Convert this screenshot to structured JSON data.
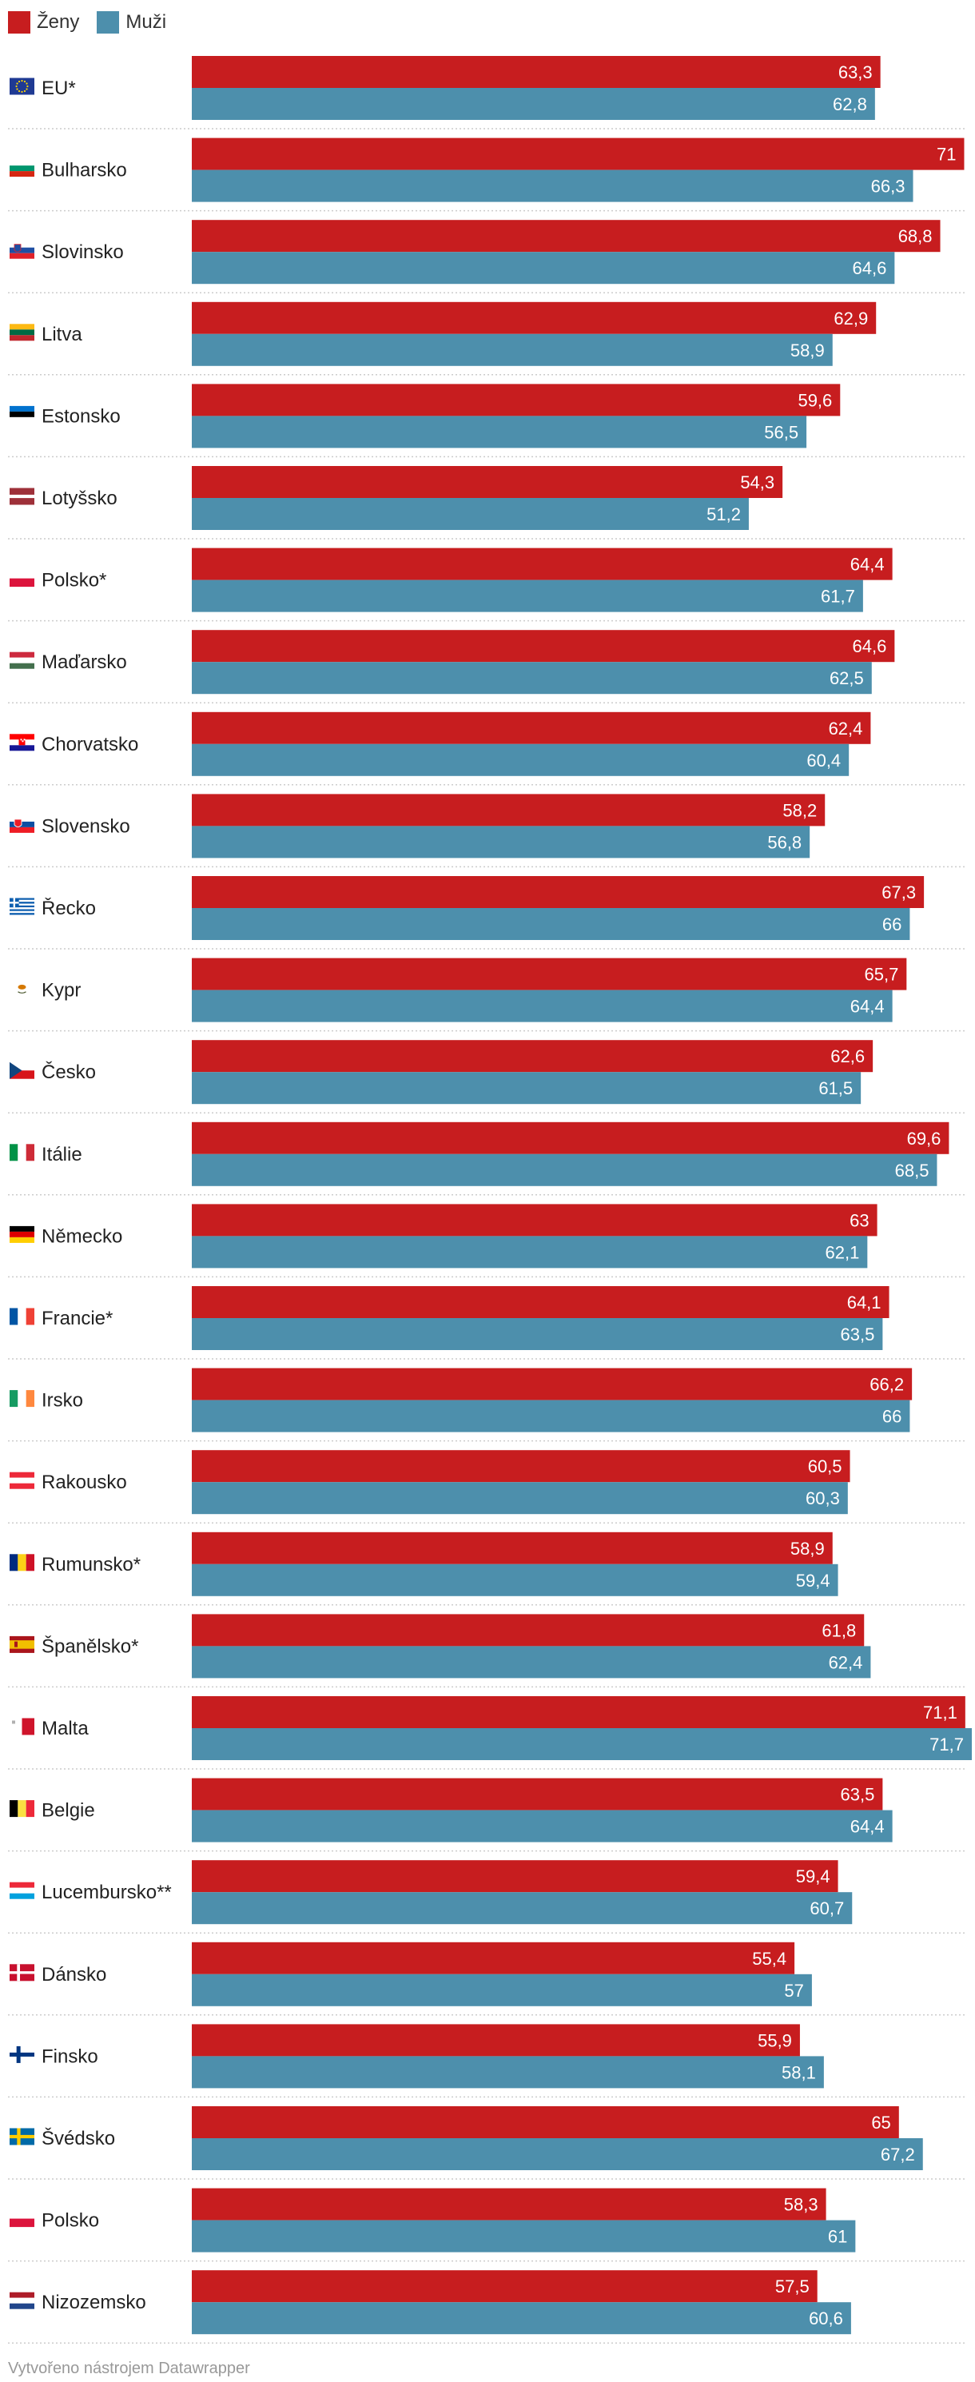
{
  "colors": {
    "women": "#c71d1f",
    "men": "#4d8fac",
    "divider": "#cccccc",
    "value_text": "#ffffff",
    "label_text": "#222222",
    "footer_text": "#999999"
  },
  "chart_data": {
    "type": "bar",
    "orientation": "horizontal",
    "legend_position": "top-left",
    "grid": false,
    "xlim": [
      0,
      71.7
    ],
    "series": [
      {
        "name": "Ženy",
        "color": "#c71d1f",
        "values": [
          63.3,
          71,
          68.8,
          62.9,
          59.6,
          54.3,
          64.4,
          64.6,
          62.4,
          58.2,
          67.3,
          65.7,
          62.6,
          69.6,
          63,
          64.1,
          66.2,
          60.5,
          58.9,
          61.8,
          71.1,
          63.5,
          59.4,
          55.4,
          55.9,
          65,
          58.3,
          57.5
        ],
        "labels": [
          "63,3",
          "71",
          "68,8",
          "62,9",
          "59,6",
          "54,3",
          "64,4",
          "64,6",
          "62,4",
          "58,2",
          "67,3",
          "65,7",
          "62,6",
          "69,6",
          "63",
          "64,1",
          "66,2",
          "60,5",
          "58,9",
          "61,8",
          "71,1",
          "63,5",
          "59,4",
          "55,4",
          "55,9",
          "65",
          "58,3",
          "57,5"
        ]
      },
      {
        "name": "Muži",
        "color": "#4d8fac",
        "values": [
          62.8,
          66.3,
          64.6,
          58.9,
          56.5,
          51.2,
          61.7,
          62.5,
          60.4,
          56.8,
          66,
          64.4,
          61.5,
          68.5,
          62.1,
          63.5,
          66,
          60.3,
          59.4,
          62.4,
          71.7,
          64.4,
          60.7,
          57,
          58.1,
          67.2,
          61,
          60.6
        ],
        "labels": [
          "62,8",
          "66,3",
          "64,6",
          "58,9",
          "56,5",
          "51,2",
          "61,7",
          "62,5",
          "60,4",
          "56,8",
          "66",
          "64,4",
          "61,5",
          "68,5",
          "62,1",
          "63,5",
          "66",
          "60,3",
          "59,4",
          "62,4",
          "71,7",
          "64,4",
          "60,7",
          "57",
          "58,1",
          "67,2",
          "61",
          "60,6"
        ]
      }
    ],
    "categories": [
      {
        "label": "EU*",
        "flag": "eu"
      },
      {
        "label": "Bulharsko",
        "flag": "bg"
      },
      {
        "label": "Slovinsko",
        "flag": "si"
      },
      {
        "label": "Litva",
        "flag": "lt"
      },
      {
        "label": "Estonsko",
        "flag": "ee"
      },
      {
        "label": "Lotyšsko",
        "flag": "lv"
      },
      {
        "label": "Polsko*",
        "flag": "pl"
      },
      {
        "label": "Maďarsko",
        "flag": "hu"
      },
      {
        "label": "Chorvatsko",
        "flag": "hr"
      },
      {
        "label": "Slovensko",
        "flag": "sk"
      },
      {
        "label": "Řecko",
        "flag": "gr"
      },
      {
        "label": "Kypr",
        "flag": "cy"
      },
      {
        "label": "Česko",
        "flag": "cz"
      },
      {
        "label": "Itálie",
        "flag": "it"
      },
      {
        "label": "Německo",
        "flag": "de"
      },
      {
        "label": "Francie*",
        "flag": "fr"
      },
      {
        "label": "Irsko",
        "flag": "ie"
      },
      {
        "label": "Rakousko",
        "flag": "at"
      },
      {
        "label": "Rumunsko*",
        "flag": "ro"
      },
      {
        "label": "Španělsko*",
        "flag": "es"
      },
      {
        "label": "Malta",
        "flag": "mt"
      },
      {
        "label": "Belgie",
        "flag": "be"
      },
      {
        "label": "Lucembursko**",
        "flag": "lu"
      },
      {
        "label": "Dánsko",
        "flag": "dk"
      },
      {
        "label": "Finsko",
        "flag": "fi"
      },
      {
        "label": "Švédsko",
        "flag": "se"
      },
      {
        "label": "Polsko",
        "flag": "pl"
      },
      {
        "label": "Nizozemsko",
        "flag": "nl"
      }
    ]
  },
  "legend": [
    {
      "label": "Ženy",
      "color": "#c71d1f"
    },
    {
      "label": "Muži",
      "color": "#4d8fac"
    }
  ],
  "footer": {
    "credit": "Vytvořeno nástrojem Datawrapper"
  }
}
